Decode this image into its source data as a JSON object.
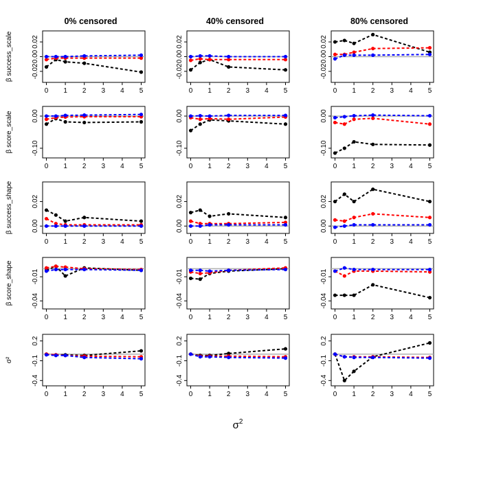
{
  "figure": {
    "x_axis_label": "σ",
    "x_axis_label_sup": "2",
    "column_titles": [
      "0% censored",
      "40% censored",
      "80% censored"
    ],
    "colors": {
      "black": "#000000",
      "red": "#ff0000",
      "blue": "#0000ff",
      "reference": "#b0b0b0"
    }
  },
  "chart_data": [
    {
      "type": "line",
      "panel": "row1-col1",
      "x": [
        0,
        0.5,
        1,
        2,
        5
      ],
      "series": [
        {
          "name": "black",
          "values": [
            -0.014,
            -0.004,
            -0.007,
            -0.009,
            -0.021
          ]
        },
        {
          "name": "red",
          "values": [
            -0.004,
            -0.002,
            -0.002,
            -0.002,
            -0.002
          ]
        },
        {
          "name": "blue",
          "values": [
            0.0,
            0.0,
            0.0,
            0.001,
            0.002
          ]
        }
      ],
      "ylabel": "β success_scale",
      "yticks": [
        -0.02,
        0.0,
        0.02
      ],
      "yticklabels": [
        "-0.02",
        "0.00",
        "0.02"
      ],
      "ylim": [
        -0.035,
        0.035
      ],
      "xticks": [
        0,
        1,
        2,
        3,
        4,
        5
      ],
      "xlim": [
        -0.2,
        5.2
      ],
      "reference_line": 0
    },
    {
      "type": "line",
      "panel": "row1-col2",
      "x": [
        0,
        0.5,
        1,
        2,
        5
      ],
      "series": [
        {
          "name": "black",
          "values": [
            -0.018,
            -0.008,
            -0.004,
            -0.014,
            -0.018
          ]
        },
        {
          "name": "red",
          "values": [
            -0.005,
            -0.003,
            -0.004,
            -0.004,
            -0.004
          ]
        },
        {
          "name": "blue",
          "values": [
            0.0,
            0.001,
            0.001,
            0.0,
            0.0
          ]
        }
      ],
      "ylabel": "",
      "yticks": [
        -0.02,
        0.0,
        0.02
      ],
      "yticklabels": [
        "-0.02",
        "0.00",
        "0.02"
      ],
      "ylim": [
        -0.035,
        0.035
      ],
      "xticks": [
        0,
        1,
        2,
        3,
        4,
        5
      ],
      "xlim": [
        -0.2,
        5.2
      ],
      "reference_line": 0
    },
    {
      "type": "line",
      "panel": "row1-col3",
      "x": [
        0,
        0.5,
        1,
        2,
        5
      ],
      "series": [
        {
          "name": "black",
          "values": [
            0.02,
            0.022,
            0.018,
            0.03,
            0.006
          ]
        },
        {
          "name": "red",
          "values": [
            0.003,
            0.003,
            0.006,
            0.011,
            0.012
          ]
        },
        {
          "name": "blue",
          "values": [
            -0.003,
            0.002,
            0.002,
            0.002,
            0.003
          ]
        }
      ],
      "ylabel": "",
      "yticks": [
        -0.02,
        0.0,
        0.02
      ],
      "yticklabels": [
        "-0.02",
        "0.00",
        "0.02"
      ],
      "ylim": [
        -0.035,
        0.035
      ],
      "xticks": [
        0,
        1,
        2,
        3,
        4,
        5
      ],
      "xlim": [
        -0.2,
        5.2
      ],
      "reference_line": 0
    },
    {
      "type": "line",
      "panel": "row2-col1",
      "x": [
        0,
        0.5,
        1,
        2,
        5
      ],
      "series": [
        {
          "name": "black",
          "values": [
            -0.025,
            -0.008,
            -0.018,
            -0.02,
            -0.018
          ]
        },
        {
          "name": "red",
          "values": [
            -0.01,
            -0.005,
            -0.003,
            -0.002,
            -0.002
          ]
        },
        {
          "name": "blue",
          "values": [
            0.0,
            0.0,
            0.002,
            0.003,
            0.005
          ]
        }
      ],
      "ylabel": "β score_scale",
      "yticks": [
        -0.1,
        0.0
      ],
      "yticklabels": [
        "-0.10",
        "0.00"
      ],
      "ylim": [
        -0.13,
        0.03
      ],
      "xticks": [
        0,
        1,
        2,
        3,
        4,
        5
      ],
      "xlim": [
        -0.2,
        5.2
      ],
      "reference_line": 0
    },
    {
      "type": "line",
      "panel": "row2-col2",
      "x": [
        0,
        0.5,
        1,
        2,
        5
      ],
      "series": [
        {
          "name": "black",
          "values": [
            -0.045,
            -0.025,
            -0.012,
            -0.015,
            -0.025
          ]
        },
        {
          "name": "red",
          "values": [
            -0.005,
            -0.01,
            -0.008,
            -0.01,
            -0.003
          ]
        },
        {
          "name": "blue",
          "values": [
            0.0,
            0.001,
            0.0,
            0.002,
            0.002
          ]
        }
      ],
      "ylabel": "",
      "yticks": [
        -0.1,
        0.0
      ],
      "yticklabels": [
        "-0.10",
        "0.00"
      ],
      "ylim": [
        -0.13,
        0.03
      ],
      "xticks": [
        0,
        1,
        2,
        3,
        4,
        5
      ],
      "xlim": [
        -0.2,
        5.2
      ],
      "reference_line": 0
    },
    {
      "type": "line",
      "panel": "row2-col3",
      "x": [
        0,
        0.5,
        1,
        2,
        5
      ],
      "series": [
        {
          "name": "black",
          "values": [
            -0.115,
            -0.1,
            -0.08,
            -0.088,
            -0.09
          ]
        },
        {
          "name": "red",
          "values": [
            -0.02,
            -0.025,
            -0.01,
            -0.007,
            -0.025
          ]
        },
        {
          "name": "blue",
          "values": [
            -0.005,
            -0.002,
            0.001,
            0.003,
            0.001
          ]
        }
      ],
      "ylabel": "",
      "yticks": [
        -0.1,
        0.0
      ],
      "yticklabels": [
        "-0.10",
        "0.00"
      ],
      "ylim": [
        -0.13,
        0.03
      ],
      "xticks": [
        0,
        1,
        2,
        3,
        4,
        5
      ],
      "xlim": [
        -0.2,
        5.2
      ],
      "reference_line": 0
    },
    {
      "type": "line",
      "panel": "row3-col1",
      "x": [
        0,
        0.5,
        1,
        2,
        5
      ],
      "series": [
        {
          "name": "black",
          "values": [
            0.013,
            0.009,
            0.004,
            0.007,
            0.004
          ]
        },
        {
          "name": "red",
          "values": [
            0.006,
            0.002,
            0.001,
            0.001,
            0.001
          ]
        },
        {
          "name": "blue",
          "values": [
            0.0,
            0.0,
            0.0,
            0.0,
            0.0
          ]
        }
      ],
      "ylabel": "β success_shape",
      "yticks": [
        0.0,
        0.02
      ],
      "yticklabels": [
        "0.00",
        "0.02"
      ],
      "ylim": [
        -0.006,
        0.036
      ],
      "xticks": [
        0,
        1,
        2,
        3,
        4,
        5
      ],
      "xlim": [
        -0.2,
        5.2
      ],
      "reference_line": 0
    },
    {
      "type": "line",
      "panel": "row3-col2",
      "x": [
        0,
        0.5,
        1,
        2,
        5
      ],
      "series": [
        {
          "name": "black",
          "values": [
            0.011,
            0.013,
            0.008,
            0.01,
            0.007
          ]
        },
        {
          "name": "red",
          "values": [
            0.004,
            0.002,
            0.002,
            0.002,
            0.003
          ]
        },
        {
          "name": "blue",
          "values": [
            0.0,
            0.0,
            0.001,
            0.001,
            0.001
          ]
        }
      ],
      "ylabel": "",
      "yticks": [
        0.0,
        0.02
      ],
      "yticklabels": [
        "0.00",
        "0.02"
      ],
      "ylim": [
        -0.006,
        0.036
      ],
      "xticks": [
        0,
        1,
        2,
        3,
        4,
        5
      ],
      "xlim": [
        -0.2,
        5.2
      ],
      "reference_line": 0
    },
    {
      "type": "line",
      "panel": "row3-col3",
      "x": [
        0,
        0.5,
        1,
        2,
        5
      ],
      "series": [
        {
          "name": "black",
          "values": [
            0.02,
            0.026,
            0.02,
            0.03,
            0.02
          ]
        },
        {
          "name": "red",
          "values": [
            0.005,
            0.004,
            0.007,
            0.01,
            0.007
          ]
        },
        {
          "name": "blue",
          "values": [
            -0.001,
            0.0,
            0.001,
            0.001,
            0.001
          ]
        }
      ],
      "ylabel": "",
      "yticks": [
        0.0,
        0.02
      ],
      "yticklabels": [
        "0.00",
        "0.02"
      ],
      "ylim": [
        -0.006,
        0.036
      ],
      "xticks": [
        0,
        1,
        2,
        3,
        4,
        5
      ],
      "xlim": [
        -0.2,
        5.2
      ],
      "reference_line": 0
    },
    {
      "type": "line",
      "panel": "row4-col1",
      "x": [
        0,
        0.5,
        1,
        2,
        5
      ],
      "series": [
        {
          "name": "black",
          "values": [
            -0.002,
            0.003,
            -0.009,
            0.001,
            -0.002
          ]
        },
        {
          "name": "red",
          "values": [
            0.001,
            0.003,
            0.002,
            0.0,
            -0.001
          ]
        },
        {
          "name": "blue",
          "values": [
            -0.003,
            -0.001,
            -0.001,
            -0.001,
            -0.002
          ]
        }
      ],
      "ylabel": "β score_shape",
      "yticks": [
        -0.01,
        -0.04
      ],
      "yticklabels": [
        "-0.01",
        "-0.04"
      ],
      "ylim": [
        -0.05,
        0.014
      ],
      "xticks": [
        0,
        1,
        2,
        3,
        4,
        5
      ],
      "xlim": [
        -0.2,
        5.2
      ],
      "reference_line": 0
    },
    {
      "type": "line",
      "panel": "row4-col2",
      "x": [
        0,
        0.5,
        1,
        2,
        5
      ],
      "series": [
        {
          "name": "black",
          "values": [
            -0.012,
            -0.013,
            -0.006,
            -0.003,
            0.0
          ]
        },
        {
          "name": "red",
          "values": [
            -0.004,
            -0.006,
            -0.005,
            -0.002,
            0.001
          ]
        },
        {
          "name": "blue",
          "values": [
            -0.002,
            -0.002,
            -0.003,
            -0.002,
            -0.001
          ]
        }
      ],
      "ylabel": "",
      "yticks": [
        -0.01,
        -0.04
      ],
      "yticklabels": [
        "-0.01",
        "-0.04"
      ],
      "ylim": [
        -0.05,
        0.014
      ],
      "xticks": [
        0,
        1,
        2,
        3,
        4,
        5
      ],
      "xlim": [
        -0.2,
        5.2
      ],
      "reference_line": 0
    },
    {
      "type": "line",
      "panel": "row4-col3",
      "x": [
        0,
        0.5,
        1,
        2,
        5
      ],
      "series": [
        {
          "name": "black",
          "values": [
            -0.033,
            -0.033,
            -0.033,
            -0.02,
            -0.036
          ]
        },
        {
          "name": "red",
          "values": [
            -0.003,
            -0.009,
            -0.003,
            -0.003,
            -0.004
          ]
        },
        {
          "name": "blue",
          "values": [
            -0.003,
            0.001,
            -0.001,
            -0.001,
            -0.001
          ]
        }
      ],
      "ylabel": "",
      "yticks": [
        -0.01,
        -0.04
      ],
      "yticklabels": [
        "-0.01",
        "-0.04"
      ],
      "ylim": [
        -0.05,
        0.014
      ],
      "xticks": [
        0,
        1,
        2,
        3,
        4,
        5
      ],
      "xlim": [
        -0.2,
        5.2
      ],
      "reference_line": 0
    },
    {
      "type": "line",
      "panel": "row5-col1",
      "x": [
        0,
        0.5,
        1,
        2,
        5
      ],
      "series": [
        {
          "name": "black",
          "values": [
            0.0,
            -0.01,
            -0.01,
            -0.02,
            0.05
          ]
        },
        {
          "name": "red",
          "values": [
            0.0,
            -0.01,
            -0.02,
            -0.03,
            -0.04
          ]
        },
        {
          "name": "blue",
          "values": [
            -0.01,
            -0.02,
            -0.02,
            -0.05,
            -0.07
          ]
        }
      ],
      "ylabel": "σ²",
      "yticks": [
        0.2,
        -0.1,
        -0.4
      ],
      "yticklabels": [
        "0.2",
        "-0.1",
        "-0.4"
      ],
      "ylim": [
        -0.48,
        0.3
      ],
      "xticks": [
        0,
        1,
        2,
        3,
        4,
        5
      ],
      "xlim": [
        -0.2,
        5.2
      ],
      "reference_line": 0
    },
    {
      "type": "line",
      "panel": "row5-col2",
      "x": [
        0,
        0.5,
        1,
        2,
        5
      ],
      "series": [
        {
          "name": "black",
          "values": [
            0.0,
            -0.02,
            -0.02,
            0.01,
            0.08
          ]
        },
        {
          "name": "red",
          "values": [
            0.0,
            -0.03,
            -0.03,
            -0.03,
            -0.04
          ]
        },
        {
          "name": "blue",
          "values": [
            0.0,
            -0.04,
            -0.04,
            -0.05,
            -0.06
          ]
        }
      ],
      "ylabel": "",
      "yticks": [
        0.2,
        -0.1,
        -0.4
      ],
      "yticklabels": [
        "0.2",
        "-0.1",
        "-0.4"
      ],
      "ylim": [
        -0.48,
        0.3
      ],
      "xticks": [
        0,
        1,
        2,
        3,
        4,
        5
      ],
      "xlim": [
        -0.2,
        5.2
      ],
      "reference_line": 0
    },
    {
      "type": "line",
      "panel": "row5-col3",
      "x": [
        0,
        0.5,
        1,
        2,
        5
      ],
      "series": [
        {
          "name": "black",
          "values": [
            0.0,
            -0.4,
            -0.26,
            -0.04,
            0.17
          ]
        },
        {
          "name": "red",
          "values": [
            0.0,
            -0.04,
            -0.04,
            -0.04,
            -0.05
          ]
        },
        {
          "name": "blue",
          "values": [
            0.0,
            -0.04,
            -0.05,
            -0.05,
            -0.06
          ]
        }
      ],
      "ylabel": "",
      "yticks": [
        0.2,
        -0.1,
        -0.4
      ],
      "yticklabels": [
        "0.2",
        "-0.1",
        "-0.4"
      ],
      "ylim": [
        -0.48,
        0.3
      ],
      "xticks": [
        0,
        1,
        2,
        3,
        4,
        5
      ],
      "xlim": [
        -0.2,
        5.2
      ],
      "reference_line": 0
    }
  ]
}
